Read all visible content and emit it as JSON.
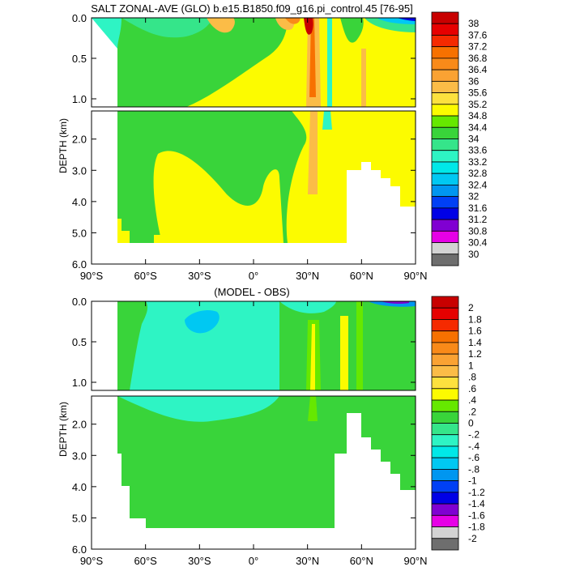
{
  "chart_data": [
    {
      "type": "contour",
      "title": "SALT ZONAL-AVE (GLO) b.e15.B1850.f09_g16.pi_control.45 [76-95]",
      "ylabel": "DEPTH (km)",
      "xlabel": "",
      "x_ticks": [
        "90°S",
        "60°S",
        "30°S",
        "0°",
        "30°N",
        "60°N",
        "90°N"
      ],
      "x_values": [
        -90,
        -60,
        -30,
        0,
        30,
        60,
        90
      ],
      "y_ticks_upper": [
        "0.0",
        "0.5",
        "1.0"
      ],
      "y_ticks_upper_values": [
        0,
        0.5,
        1.0
      ],
      "y_ticks_lower": [
        "2.0",
        "3.0",
        "4.0",
        "5.0",
        "6.0"
      ],
      "y_ticks_lower_values": [
        2,
        3,
        4,
        5,
        6
      ],
      "ylim_upper": [
        0,
        1.1
      ],
      "ylim_lower": [
        1.1,
        6.0
      ],
      "colorbar": {
        "labels": [
          "38",
          "37.6",
          "37.2",
          "36.8",
          "36.4",
          "36",
          "35.6",
          "35.2",
          "34.8",
          "34.4",
          "34",
          "33.6",
          "33.2",
          "32.8",
          "32.4",
          "32",
          "31.6",
          "31.2",
          "30.8",
          "30.4",
          "30"
        ],
        "colors": [
          "#c80000",
          "#e60000",
          "#f52a00",
          "#f77100",
          "#f98a19",
          "#faa233",
          "#fbbc47",
          "#fde13e",
          "#fcfb00",
          "#66e800",
          "#39d43a",
          "#35e58a",
          "#2ef4c4",
          "#00e8e8",
          "#00c8f2",
          "#0096f0",
          "#0040f5",
          "#0000e6",
          "#8000d2",
          "#e600e6",
          "#d3d3d3",
          "#6e6e6e"
        ]
      }
    },
    {
      "type": "contour",
      "title": "(MODEL - OBS)",
      "ylabel": "DEPTH (km)",
      "xlabel": "",
      "x_ticks": [
        "90°S",
        "60°S",
        "30°S",
        "0°",
        "30°N",
        "60°N",
        "90°N"
      ],
      "x_values": [
        -90,
        -60,
        -30,
        0,
        30,
        60,
        90
      ],
      "y_ticks_upper": [
        "0.0",
        "0.5",
        "1.0"
      ],
      "y_ticks_upper_values": [
        0,
        0.5,
        1.0
      ],
      "y_ticks_lower": [
        "2.0",
        "3.0",
        "4.0",
        "5.0",
        "6.0"
      ],
      "y_ticks_lower_values": [
        2,
        3,
        4,
        5,
        6
      ],
      "ylim_upper": [
        0,
        1.1
      ],
      "ylim_lower": [
        1.1,
        6.0
      ],
      "colorbar": {
        "labels": [
          "2",
          "1.8",
          "1.6",
          "1.4",
          "1.2",
          "1",
          ".8",
          ".6",
          ".4",
          ".2",
          "0",
          "-.2",
          "-.4",
          "-.6",
          "-.8",
          "-1",
          "-1.2",
          "-1.4",
          "-1.6",
          "-1.8",
          "-2"
        ],
        "colors": [
          "#c80000",
          "#e60000",
          "#f52a00",
          "#f77100",
          "#f98a19",
          "#faa233",
          "#fbbc47",
          "#fde13e",
          "#fcfb00",
          "#66e800",
          "#39d43a",
          "#35e58a",
          "#2ef4c4",
          "#00e8e8",
          "#00c8f2",
          "#0096f0",
          "#0040f5",
          "#0000e6",
          "#8000d2",
          "#e600e6",
          "#d3d3d3",
          "#6e6e6e"
        ]
      }
    }
  ]
}
